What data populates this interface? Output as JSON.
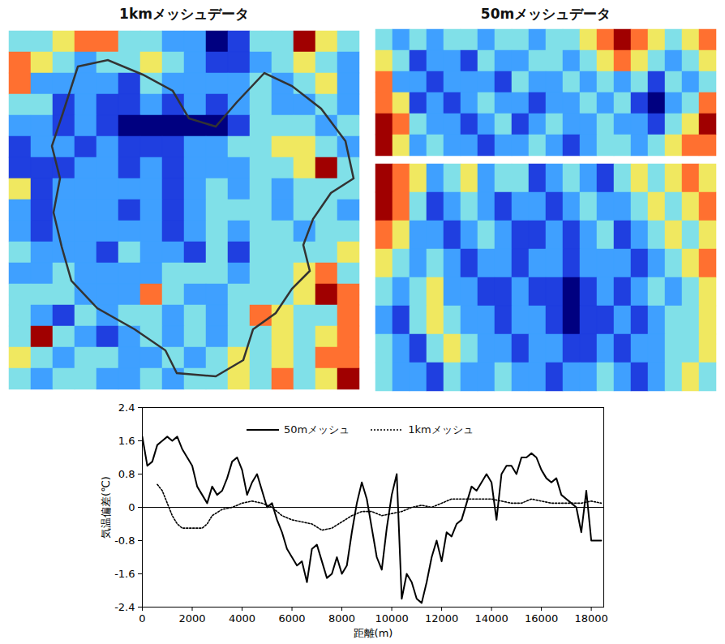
{
  "chart_data": [
    {
      "type": "heatmap",
      "title": "1kmメッシュデータ",
      "color_range": [
        -3,
        3
      ],
      "cells": [
        [
          0,
          0,
          1,
          2,
          2,
          0,
          0,
          -1,
          -1,
          -3,
          -2,
          0,
          0,
          3,
          1,
          0
        ],
        [
          2,
          1,
          0,
          -1,
          0,
          0,
          1,
          0,
          -1,
          -2,
          -2,
          -1,
          0,
          1,
          0,
          -1
        ],
        [
          2,
          -1,
          -1,
          -1,
          -1,
          -2,
          0,
          -1,
          -1,
          -1,
          -1,
          0,
          -1,
          0,
          1,
          -1
        ],
        [
          0,
          0,
          -2,
          -1,
          -2,
          -2,
          -1,
          -2,
          -1,
          -2,
          -1,
          0,
          -1,
          -1,
          0,
          -1
        ],
        [
          -1,
          -1,
          -2,
          -1,
          -2,
          -3,
          -3,
          -3,
          -3,
          -3,
          -2,
          0,
          0,
          0,
          -1,
          0
        ],
        [
          -2,
          -1,
          -1,
          -2,
          -1,
          -2,
          -2,
          -2,
          -1,
          -1,
          0,
          0,
          1,
          1,
          0,
          -1
        ],
        [
          -2,
          -2,
          -2,
          -1,
          -1,
          -2,
          -1,
          -2,
          -1,
          -1,
          -1,
          0,
          0,
          1,
          3,
          0
        ],
        [
          1,
          -2,
          -1,
          -1,
          -1,
          -1,
          -1,
          -2,
          -1,
          0,
          -1,
          0,
          -1,
          0,
          0,
          0
        ],
        [
          -1,
          -2,
          -1,
          -1,
          -1,
          -2,
          -1,
          -2,
          -1,
          0,
          0,
          0,
          -1,
          0,
          0,
          -1
        ],
        [
          -1,
          -2,
          -1,
          -1,
          -1,
          -1,
          -1,
          -2,
          -1,
          0,
          -1,
          0,
          0,
          -1,
          0,
          0
        ],
        [
          0,
          -1,
          -1,
          -1,
          -2,
          0,
          -1,
          -1,
          -2,
          0,
          -2,
          0,
          0,
          0,
          0,
          1
        ],
        [
          -1,
          -1,
          0,
          -1,
          -1,
          -1,
          -1,
          0,
          0,
          0,
          -1,
          0,
          0,
          1,
          2,
          0
        ],
        [
          0,
          0,
          0,
          -1,
          -1,
          -1,
          2,
          0,
          -1,
          -1,
          0,
          0,
          0,
          1,
          3,
          2
        ],
        [
          0,
          -1,
          -2,
          0,
          -1,
          0,
          0,
          -1,
          0,
          -1,
          0,
          2,
          1,
          0,
          0,
          2
        ],
        [
          0,
          3,
          0,
          -1,
          -2,
          -1,
          0,
          -1,
          0,
          -1,
          0,
          0,
          1,
          0,
          1,
          2
        ],
        [
          1,
          0,
          -1,
          0,
          0,
          -1,
          -1,
          0,
          -1,
          0,
          1,
          0,
          1,
          0,
          2,
          2
        ],
        [
          0,
          -1,
          0,
          0,
          -1,
          -1,
          0,
          -1,
          0,
          0,
          1,
          0,
          2,
          0,
          1,
          3
        ]
      ]
    },
    {
      "type": "heatmap",
      "title": "50mメッシュデータ",
      "color_range": [
        -3,
        3
      ],
      "cells": [
        [
          0,
          -1,
          0,
          -1,
          0,
          0,
          -1,
          0,
          0,
          -1,
          0,
          0,
          1,
          2,
          3,
          2,
          1,
          0,
          1,
          2
        ],
        [
          1,
          0,
          -2,
          -1,
          -1,
          -2,
          0,
          -1,
          -1,
          0,
          0,
          -1,
          0,
          1,
          2,
          1,
          0,
          -1,
          0,
          1
        ],
        [
          2,
          -1,
          -1,
          -2,
          -1,
          -1,
          -1,
          -2,
          0,
          -1,
          -1,
          0,
          -1,
          0,
          -1,
          0,
          -2,
          0,
          -1,
          0
        ],
        [
          2,
          1,
          -2,
          -1,
          -2,
          -1,
          0,
          -1,
          -1,
          -2,
          -1,
          -1,
          0,
          -1,
          0,
          -2,
          -3,
          -1,
          0,
          2
        ],
        [
          3,
          2,
          0,
          -1,
          -1,
          -2,
          -1,
          0,
          -2,
          -1,
          0,
          -1,
          -1,
          0,
          -1,
          -1,
          -2,
          0,
          1,
          3
        ],
        [
          3,
          1,
          -1,
          0,
          -1,
          -1,
          -2,
          -1,
          -1,
          0,
          -1,
          -2,
          -1,
          0,
          0,
          -1,
          0,
          1,
          2,
          2
        ]
      ]
    },
    {
      "type": "heatmap",
      "color_range": [
        -3,
        3
      ],
      "cells": [
        [
          3,
          2,
          1,
          -1,
          0,
          1,
          -1,
          0,
          0,
          -2,
          -1,
          0,
          -1,
          -2,
          0,
          1,
          0,
          1,
          2,
          1
        ],
        [
          3,
          2,
          0,
          -2,
          -1,
          0,
          -1,
          -2,
          -1,
          -1,
          -2,
          -1,
          0,
          -1,
          -1,
          0,
          1,
          0,
          1,
          2
        ],
        [
          2,
          1,
          -1,
          -1,
          -2,
          -1,
          0,
          -1,
          -2,
          -2,
          -1,
          -2,
          -1,
          0,
          -2,
          -1,
          0,
          1,
          0,
          1
        ],
        [
          1,
          0,
          -1,
          0,
          -1,
          -2,
          -1,
          -1,
          -2,
          -1,
          -1,
          -2,
          -1,
          -1,
          -1,
          -2,
          -1,
          0,
          1,
          2
        ],
        [
          0,
          -1,
          0,
          1,
          -1,
          -1,
          -2,
          -2,
          -1,
          -2,
          -2,
          -3,
          -2,
          -1,
          -2,
          -1,
          0,
          -1,
          0,
          1
        ],
        [
          -1,
          -2,
          0,
          1,
          0,
          -1,
          -1,
          -2,
          -1,
          -1,
          -2,
          -3,
          -2,
          -2,
          -1,
          -2,
          -1,
          0,
          0,
          1
        ],
        [
          0,
          -1,
          -2,
          0,
          1,
          0,
          -1,
          -1,
          -2,
          -1,
          -1,
          -2,
          -2,
          -1,
          -2,
          -1,
          -1,
          0,
          0,
          1
        ],
        [
          0,
          -1,
          -1,
          -2,
          0,
          -1,
          -1,
          0,
          -1,
          -1,
          -2,
          -1,
          -1,
          0,
          -1,
          -2,
          -1,
          0,
          1,
          0
        ]
      ]
    },
    {
      "type": "line",
      "x_label": "距離(m)",
      "y_label": "気温偏差(℃)",
      "xlim": [
        0,
        18500
      ],
      "xticks": [
        0,
        2000,
        4000,
        6000,
        8000,
        10000,
        12000,
        14000,
        16000,
        18000
      ],
      "ylim": [
        -2.4,
        2.4
      ],
      "yticks": [
        -2.4,
        -1.6,
        -0.8,
        0,
        0.8,
        1.6,
        2.4
      ],
      "grid": false,
      "legend": "top",
      "series": [
        {
          "name": "50mメッシュ",
          "color": "#000000",
          "line_style": "solid",
          "x": [
            0,
            200,
            400,
            600,
            800,
            1000,
            1200,
            1400,
            1600,
            1800,
            2000,
            2200,
            2400,
            2600,
            2800,
            3000,
            3200,
            3400,
            3600,
            3800,
            4000,
            4200,
            4400,
            4600,
            4800,
            5000,
            5200,
            5400,
            5600,
            5800,
            6000,
            6200,
            6400,
            6600,
            6800,
            7000,
            7200,
            7400,
            7600,
            7800,
            8000,
            8200,
            8400,
            8600,
            8800,
            9000,
            9200,
            9400,
            9600,
            9800,
            10000,
            10200,
            10400,
            10600,
            10800,
            11000,
            11200,
            11400,
            11600,
            11800,
            12000,
            12200,
            12400,
            12600,
            12800,
            13000,
            13200,
            13400,
            13600,
            13800,
            14000,
            14200,
            14400,
            14600,
            14800,
            15000,
            15200,
            15400,
            15600,
            15800,
            16000,
            16200,
            16400,
            16600,
            16800,
            17000,
            17200,
            17400,
            17600,
            17800,
            18000,
            18200,
            18400
          ],
          "values": [
            1.7,
            1.0,
            1.1,
            1.5,
            1.6,
            1.7,
            1.6,
            1.7,
            1.4,
            1.2,
            1.0,
            0.5,
            0.3,
            0.1,
            0.5,
            0.3,
            0.4,
            0.7,
            1.1,
            1.2,
            0.9,
            0.3,
            0.6,
            0.8,
            0.4,
            0.0,
            0.1,
            -0.3,
            -0.6,
            -1.0,
            -1.2,
            -1.4,
            -1.3,
            -1.8,
            -1.0,
            -0.9,
            -1.3,
            -1.7,
            -1.6,
            -1.2,
            -1.6,
            -1.4,
            -0.6,
            0.1,
            0.6,
            0.2,
            -0.5,
            -1.2,
            -1.5,
            -0.5,
            0.3,
            0.8,
            -2.2,
            -1.6,
            -1.8,
            -2.2,
            -2.3,
            -1.8,
            -1.2,
            -0.8,
            -1.3,
            -0.6,
            -0.7,
            -0.4,
            -0.3,
            0.1,
            0.5,
            0.4,
            0.6,
            0.8,
            0.6,
            -0.3,
            0.8,
            1.0,
            1.0,
            0.8,
            1.2,
            1.2,
            1.3,
            1.2,
            0.9,
            0.7,
            0.6,
            0.7,
            0.3,
            0.2,
            0.1,
            0.0,
            -0.6,
            0.4,
            -0.8,
            -0.8,
            -0.8
          ]
        },
        {
          "name": "1kmメッシュ",
          "color": "#000000",
          "line_style": "dotted",
          "x": [
            600,
            800,
            1000,
            1200,
            1400,
            1600,
            2000,
            2400,
            2600,
            2800,
            3200,
            3600,
            4000,
            4400,
            4800,
            5200,
            5600,
            6000,
            6400,
            6800,
            7200,
            7600,
            8000,
            8400,
            8800,
            9200,
            9600,
            10000,
            10400,
            10800,
            11200,
            11600,
            12000,
            12400,
            12800,
            13200,
            13600,
            14000,
            14400,
            14800,
            15200,
            15600,
            16000,
            16400,
            16800,
            17200,
            17600,
            18000,
            18400
          ],
          "values": [
            0.55,
            0.4,
            0.1,
            -0.2,
            -0.4,
            -0.5,
            -0.5,
            -0.5,
            -0.4,
            -0.2,
            -0.05,
            0.0,
            0.1,
            0.15,
            0.1,
            0.0,
            -0.2,
            -0.3,
            -0.35,
            -0.4,
            -0.55,
            -0.5,
            -0.35,
            -0.2,
            -0.1,
            -0.1,
            -0.2,
            -0.15,
            -0.1,
            0.0,
            0.05,
            0.0,
            0.1,
            0.2,
            0.2,
            0.2,
            0.2,
            0.2,
            0.15,
            0.1,
            0.1,
            0.2,
            0.15,
            0.1,
            0.1,
            0.1,
            0.1,
            0.15,
            0.1
          ]
        }
      ]
    }
  ]
}
